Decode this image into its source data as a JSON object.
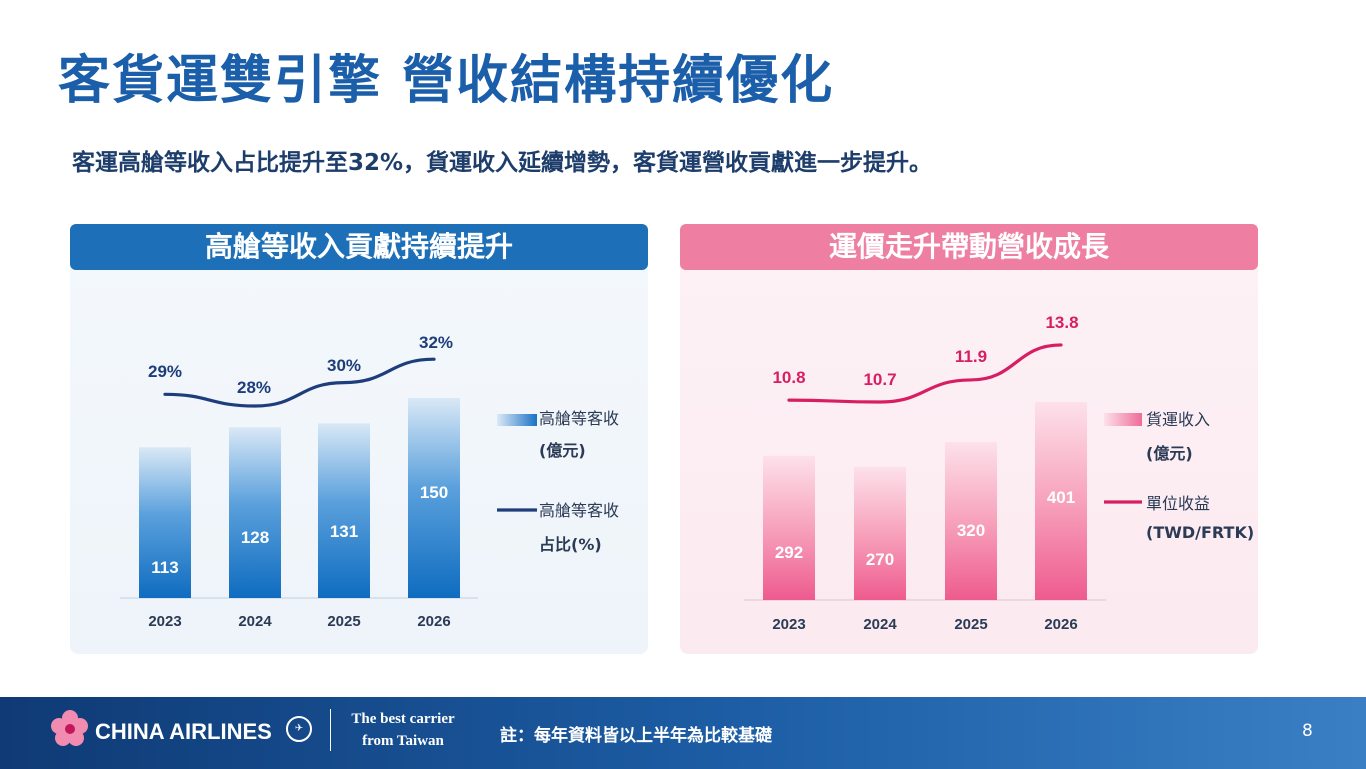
{
  "header": {
    "title": "客貨運雙引擎 營收結構持續優化",
    "subtitle": "客運高艙等收入占比提升至32%，貨運收入延續增勢，客貨運營收貢獻進一步提升。"
  },
  "colors": {
    "title_blue": "#1b5ea9",
    "left_accent": "#1d6fb8",
    "left_line": "#1d3d7b",
    "right_accent": "#ee7fa3",
    "right_line": "#d81e63"
  },
  "chart_data": [
    {
      "type": "bar",
      "title": "高艙等收入貢獻持續提升",
      "categories": [
        "2023",
        "2024",
        "2025",
        "2026"
      ],
      "series": [
        {
          "name": "高艙等客收 (億元)",
          "type": "bar",
          "values": [
            113,
            128,
            131,
            150
          ]
        },
        {
          "name": "高艙等客收 占比(%)",
          "type": "line",
          "values": [
            29,
            28,
            30,
            32
          ]
        }
      ],
      "line_labels": [
        "29%",
        "28%",
        "30%",
        "32%"
      ],
      "legend": [
        "高艙等客收",
        "(億元)",
        "高艙等客收",
        "占比(%)"
      ],
      "legend_position": "right"
    },
    {
      "type": "bar",
      "title": "運價走升帶動營收成長",
      "categories": [
        "2023",
        "2024",
        "2025",
        "2026"
      ],
      "series": [
        {
          "name": "貨運收入 (億元)",
          "type": "bar",
          "values": [
            292,
            270,
            320,
            401
          ]
        },
        {
          "name": "單位收益 (TWD/FRTK)",
          "type": "line",
          "values": [
            10.8,
            10.7,
            11.9,
            13.8
          ]
        }
      ],
      "line_labels": [
        "10.8",
        "10.7",
        "11.9",
        "13.8"
      ],
      "legend": [
        "貨運收入",
        "(億元)",
        "單位收益",
        "(TWD/FRTK)"
      ],
      "legend_position": "right"
    }
  ],
  "footer": {
    "brand": "CHINA AIRLINES",
    "tagline_line1": "The best carrier",
    "tagline_line2": "from Taiwan",
    "note": "註：每年資料皆以上半年為比較基礎",
    "page_number": "8"
  }
}
